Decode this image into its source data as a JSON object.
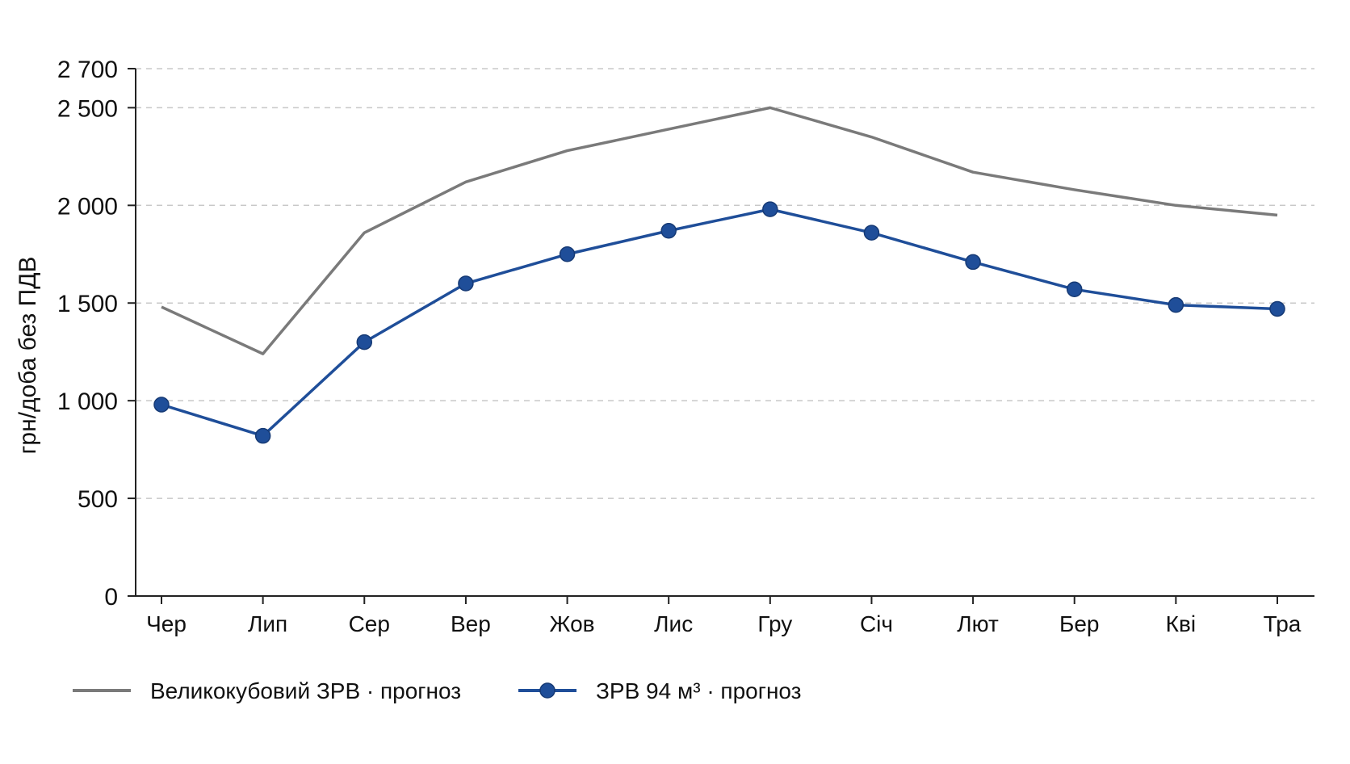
{
  "chart_data": {
    "type": "line",
    "xlabel": "",
    "ylabel": "грн/доба без ПДВ",
    "categories": [
      "Чер",
      "Лип",
      "Сер",
      "Вер",
      "Жов",
      "Лис",
      "Гру",
      "Січ",
      "Лют",
      "Бер",
      "Кві",
      "Тра"
    ],
    "ylim": [
      0,
      2700
    ],
    "yticks": [
      0,
      500,
      1000,
      1500,
      2000,
      2500,
      2700
    ],
    "ytick_labels": [
      "0",
      "500",
      "1 000",
      "1 500",
      "2 000",
      "2 500",
      "2 700"
    ],
    "grid": true,
    "legend_position": "bottom-left",
    "series": [
      {
        "name": "Великокубовий ЗРВ · прогноз",
        "color": "#7a7a7a",
        "markers": false,
        "values": [
          1480,
          1240,
          1860,
          2120,
          2280,
          2390,
          2500,
          2350,
          2170,
          2080,
          2000,
          1950
        ]
      },
      {
        "name": "ЗРВ 94 м³ · прогноз",
        "color": "#1f4e99",
        "markers": true,
        "values": [
          980,
          820,
          1300,
          1600,
          1750,
          1870,
          1980,
          1860,
          1710,
          1570,
          1490,
          1470
        ]
      }
    ]
  }
}
